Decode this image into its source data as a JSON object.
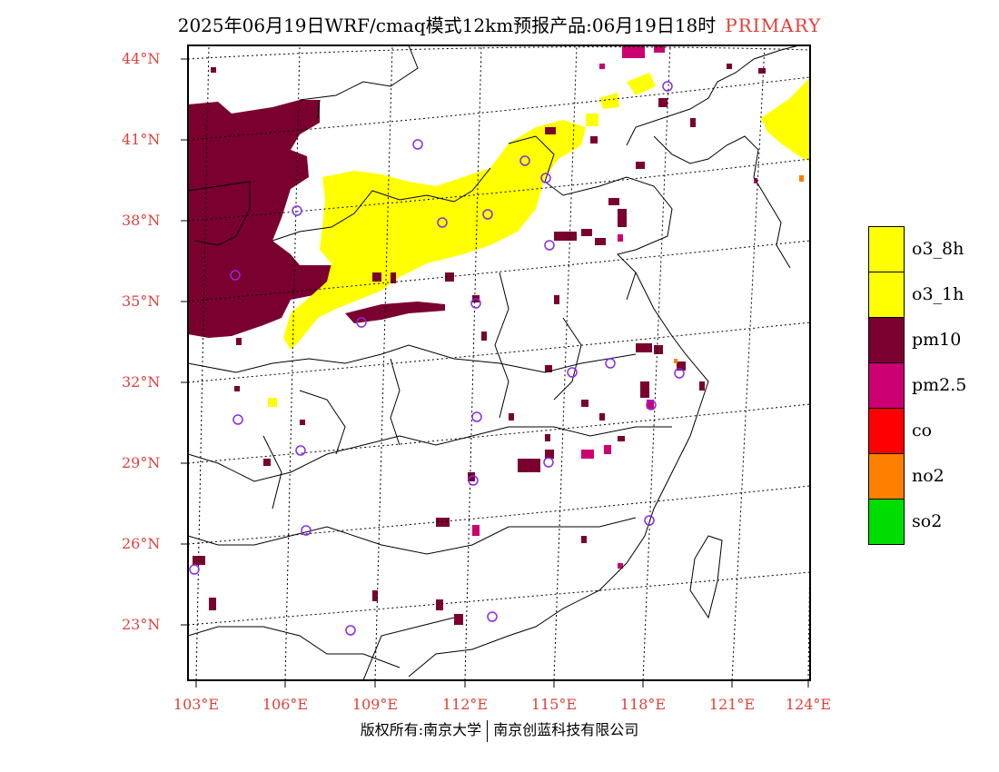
{
  "title": {
    "main": "2025年06月19日WRF/cmaq模式12km预报产品:06月19日18时",
    "tag": "PRIMARY"
  },
  "lat_labels": [
    "44°N",
    "41°N",
    "38°N",
    "35°N",
    "32°N",
    "29°N",
    "26°N",
    "23°N"
  ],
  "lon_labels": [
    "103°E",
    "106°E",
    "109°E",
    "112°E",
    "115°E",
    "118°E",
    "121°E",
    "124°E"
  ],
  "legend": [
    {
      "label": "o3_8h",
      "color": "#ffff00"
    },
    {
      "label": "o3_1h",
      "color": "#ffff00"
    },
    {
      "label": "pm10",
      "color": "#7a0030"
    },
    {
      "label": "pm2.5",
      "color": "#cc0070"
    },
    {
      "label": "co",
      "color": "#ff0000"
    },
    {
      "label": "no2",
      "color": "#ff7f00"
    },
    {
      "label": "so2",
      "color": "#00dd00"
    }
  ],
  "footer": {
    "left": "版权所有:南京大学",
    "right": "南京创蓝科技有限公司"
  }
}
